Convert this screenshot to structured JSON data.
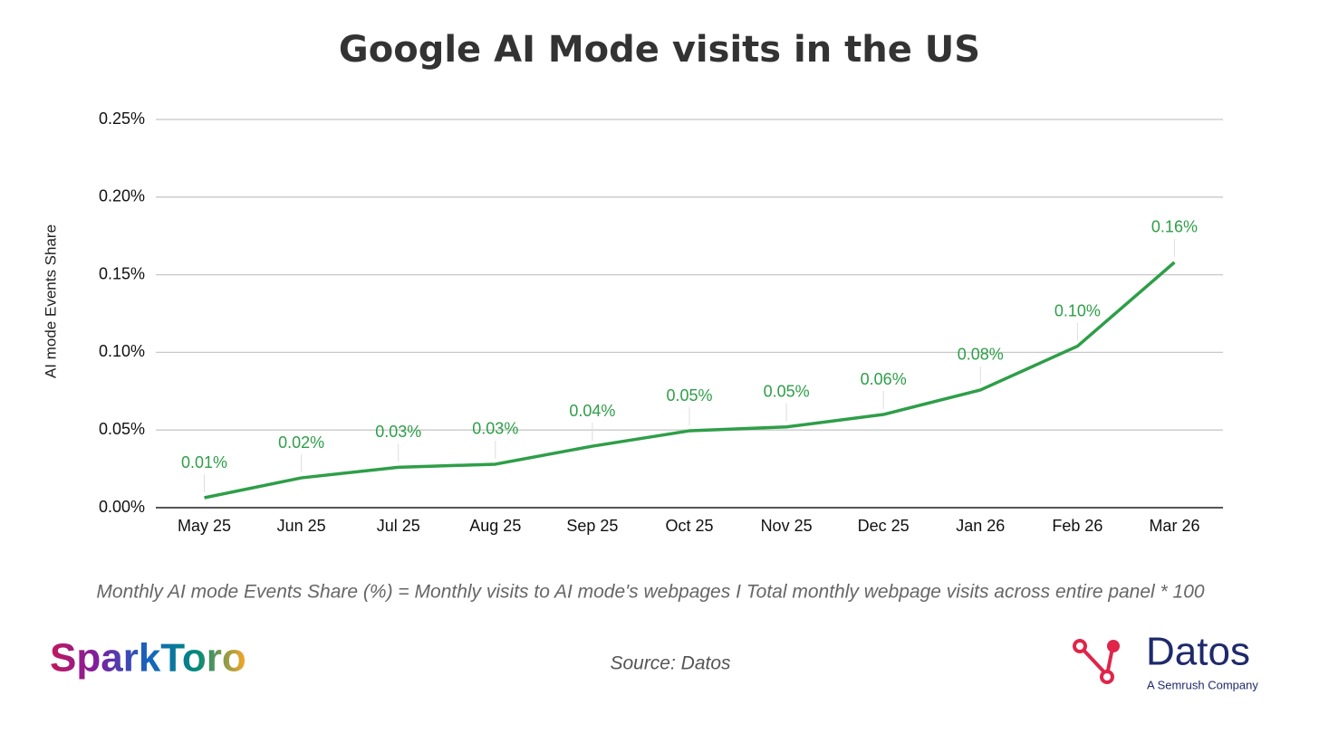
{
  "chart_data": {
    "type": "line",
    "title": "Google AI Mode visits in the US",
    "y_label": "AI mode Events Share",
    "categories": [
      "May 25",
      "Jun 25",
      "Jul 25",
      "Aug 25",
      "Sep 25",
      "Oct 25",
      "Nov 25",
      "Dec 25",
      "Jan 26",
      "Feb 26",
      "Mar 26"
    ],
    "values": [
      0.0064,
      0.0192,
      0.026,
      0.028,
      0.0396,
      0.0495,
      0.052,
      0.06,
      0.0758,
      0.104,
      0.158
    ],
    "value_labels": [
      "0.01%",
      "0.02%",
      "0.03%",
      "0.03%",
      "0.04%",
      "0.05%",
      "0.05%",
      "0.06%",
      "0.08%",
      "0.10%",
      "0.16%"
    ],
    "color": "#2e9e48",
    "ylim": [
      0,
      0.25
    ],
    "yticks": [
      {
        "value": 0,
        "label": "0.00%"
      },
      {
        "value": 0.05,
        "label": "0.05%"
      },
      {
        "value": 0.1,
        "label": "0.10%"
      },
      {
        "value": 0.15,
        "label": "0.15%"
      },
      {
        "value": 0.2,
        "label": "0.20%"
      },
      {
        "value": 0.25,
        "label": "0.25%"
      }
    ],
    "grid": true,
    "footnote": "Monthly AI mode Events Share (%) = Monthly visits to AI mode's webpages I Total monthly webpage visits across entire panel * 100",
    "source": "Source: Datos"
  },
  "branding": {
    "left_logo": "SparkToro",
    "right_logo": "Datos",
    "right_tagline": "A Semrush Company"
  }
}
